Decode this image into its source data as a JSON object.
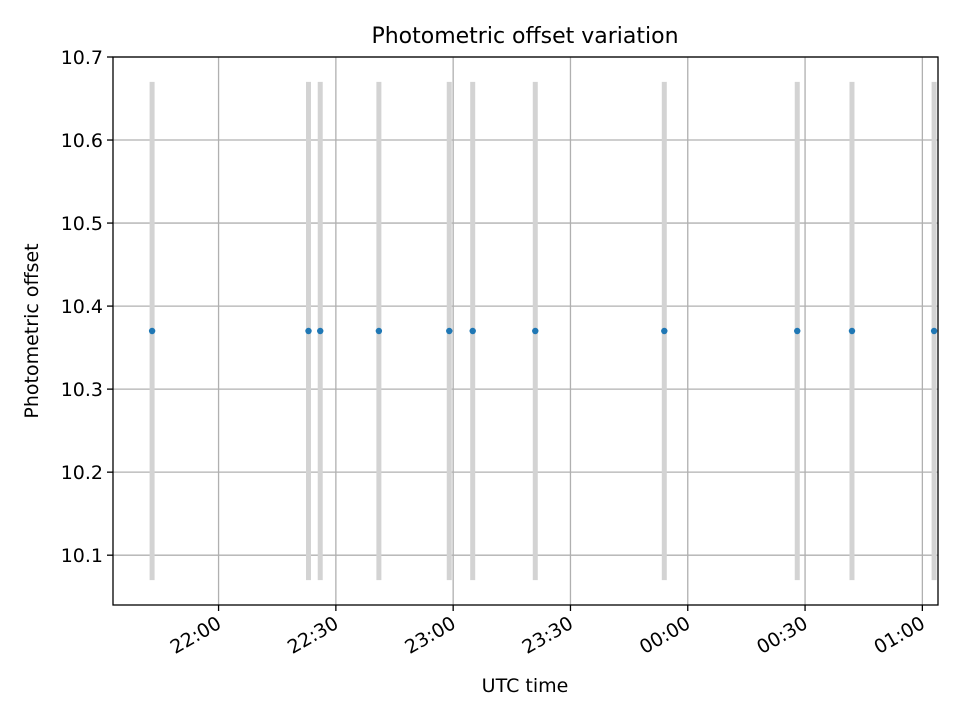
{
  "chart_data": {
    "type": "scatter",
    "title": "Photometric offset variation",
    "xlabel": "UTC time",
    "ylabel": "Photometric offset",
    "x_ticks": [
      "22:00",
      "22:30",
      "23:00",
      "23:30",
      "00:00",
      "00:30",
      "01:00"
    ],
    "y_ticks": [
      "10.1",
      "10.2",
      "10.3",
      "10.4",
      "10.5",
      "10.6",
      "10.7"
    ],
    "ylim": [
      10.04,
      10.7
    ],
    "xlim": [
      "21:33",
      "01:04"
    ],
    "grid": true,
    "series": [
      {
        "x": [
          "21:43",
          "22:23",
          "22:26",
          "22:41",
          "22:59",
          "23:05",
          "23:21",
          "23:54",
          "00:28",
          "00:42",
          "01:03"
        ],
        "y": [
          10.37,
          10.37,
          10.37,
          10.37,
          10.37,
          10.37,
          10.37,
          10.37,
          10.37,
          10.37,
          10.37
        ],
        "error_bands": [
          {
            "low": 10.07,
            "high": 10.67
          }
        ]
      }
    ],
    "colors": {
      "point": "#1f77b4",
      "band": "#d3d3d3",
      "grid": "#b0b0b0"
    }
  }
}
